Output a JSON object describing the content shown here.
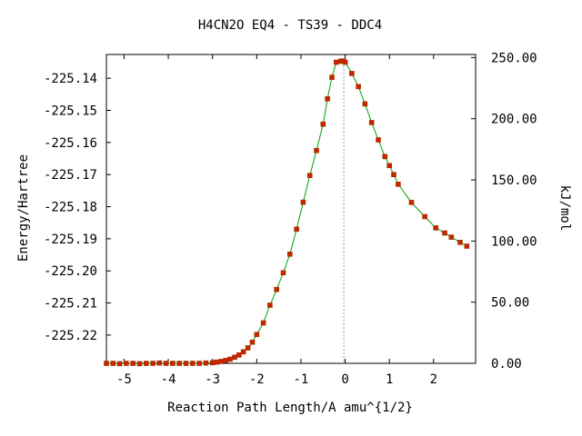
{
  "chart_data": {
    "type": "scatter",
    "title": "H4CN2O   EQ4 - TS39 - DDC4",
    "xlabel": "Reaction Path Length/A amu^{1/2}",
    "ylabel": "Energy/Hartree",
    "y2label": "kJ/mol",
    "xlim": [
      -5.4,
      2.95
    ],
    "ylim": [
      -225.2288,
      -225.1326
    ],
    "y2lim": [
      0,
      252.5
    ],
    "x_ticks": [
      {
        "value": -5,
        "label": "-5"
      },
      {
        "value": -4,
        "label": "-4"
      },
      {
        "value": -3,
        "label": "-3"
      },
      {
        "value": -2,
        "label": "-2"
      },
      {
        "value": -1,
        "label": "-1"
      },
      {
        "value": 0,
        "label": "0"
      },
      {
        "value": 1,
        "label": "1"
      },
      {
        "value": 2,
        "label": "2"
      }
    ],
    "y_ticks": [
      {
        "value": -225.14,
        "label": "-225.14"
      },
      {
        "value": -225.15,
        "label": "-225.15"
      },
      {
        "value": -225.16,
        "label": "-225.16"
      },
      {
        "value": -225.17,
        "label": "-225.17"
      },
      {
        "value": -225.18,
        "label": "-225.18"
      },
      {
        "value": -225.19,
        "label": "-225.19"
      },
      {
        "value": -225.2,
        "label": "-225.20"
      },
      {
        "value": -225.21,
        "label": "-225.21"
      },
      {
        "value": -225.22,
        "label": "-225.22"
      }
    ],
    "y2_ticks": [
      {
        "value": 250,
        "label": "250.00"
      },
      {
        "value": 200,
        "label": "200.00"
      },
      {
        "value": 150,
        "label": "150.00"
      },
      {
        "value": 100,
        "label": "100.00"
      },
      {
        "value": 50,
        "label": "50.00"
      },
      {
        "value": 0,
        "label": "0.00"
      }
    ],
    "ts_x": -0.03,
    "colors": {
      "curve": "#00a000",
      "points": "#cc2200",
      "ts_line": "#999999"
    },
    "series": [
      {
        "x": [
          -5.4,
          -5.25,
          -5.1,
          -4.95,
          -4.8,
          -4.65,
          -4.5,
          -4.35,
          -4.2,
          -4.05,
          -3.9,
          -3.75,
          -3.6,
          -3.45,
          -3.3,
          -3.15,
          -3.0,
          -2.9,
          -2.8,
          -2.7,
          -2.6,
          -2.5,
          -2.4,
          -2.3,
          -2.2,
          -2.1,
          -2.0,
          -1.85,
          -1.7,
          -1.55,
          -1.4,
          -1.25,
          -1.1,
          -0.95,
          -0.8,
          -0.65,
          -0.5,
          -0.4,
          -0.3,
          -0.2,
          -0.1,
          -0.05,
          0.0,
          0.15,
          0.3,
          0.45,
          0.6,
          0.75,
          0.9,
          1.0,
          1.1,
          1.2,
          1.5,
          1.8,
          2.05,
          2.25,
          2.4,
          2.6,
          2.75
        ],
        "y": [
          -225.2288,
          -225.2288,
          -225.2289,
          -225.2288,
          -225.2288,
          -225.2289,
          -225.2288,
          -225.2288,
          -225.2287,
          -225.2288,
          -225.2288,
          -225.2288,
          -225.2288,
          -225.2288,
          -225.2288,
          -225.2287,
          -225.2286,
          -225.2284,
          -225.2282,
          -225.2279,
          -225.2275,
          -225.2269,
          -225.2262,
          -225.2252,
          -225.224,
          -225.2222,
          -225.2198,
          -225.2162,
          -225.2107,
          -225.2058,
          -225.2006,
          -225.1948,
          -225.187,
          -225.1786,
          -225.1703,
          -225.1625,
          -225.1543,
          -225.1464,
          -225.1397,
          -225.135,
          -225.1347,
          -225.1346,
          -225.135,
          -225.1385,
          -225.1426,
          -225.148,
          -225.1538,
          -225.1592,
          -225.1644,
          -225.1672,
          -225.17,
          -225.173,
          -225.1787,
          -225.1831,
          -225.1866,
          -225.1882,
          -225.1895,
          -225.1911,
          -225.1923
        ]
      }
    ]
  }
}
